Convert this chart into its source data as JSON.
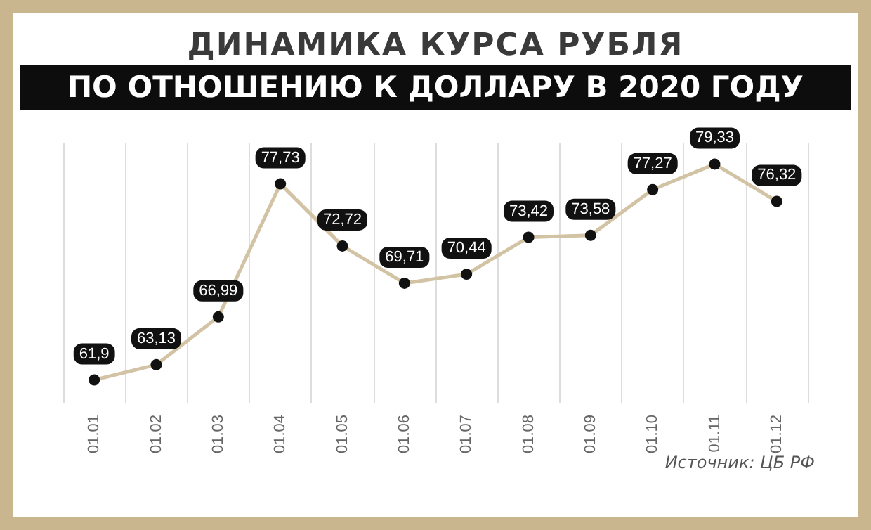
{
  "chart_data": {
    "type": "line",
    "title": "ДИНАМИКА КУРСА РУБЛЯ",
    "subtitle": "ПО ОТНОШЕНИЮ К ДОЛЛАРУ В 2020 ГОДУ",
    "categories": [
      "01.01",
      "01.02",
      "01.03",
      "01.04",
      "01.05",
      "01.06",
      "01.07",
      "01.08",
      "01.09",
      "01.10",
      "01.11",
      "01.12"
    ],
    "series": [
      {
        "color": "#d2c3a5",
        "values": [
          61.9,
          63.13,
          66.99,
          77.73,
          72.72,
          69.71,
          70.44,
          73.42,
          73.58,
          77.27,
          79.33,
          76.32
        ],
        "value_labels": [
          "61,9",
          "63,13",
          "66,99",
          "77,73",
          "72,72",
          "69,71",
          "70,44",
          "73,42",
          "73,58",
          "77,27",
          "79,33",
          "76,32"
        ]
      }
    ],
    "marker": "circle",
    "grid": "x",
    "annotations": [
      "Источник: ЦБ РФ"
    ]
  }
}
